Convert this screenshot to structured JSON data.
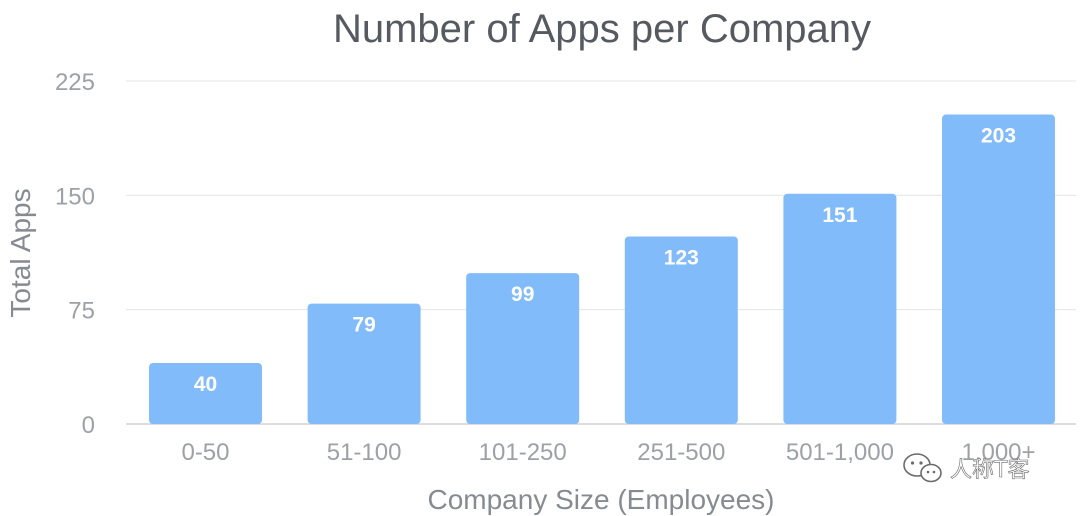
{
  "chart_data": {
    "type": "bar",
    "title": "Number of Apps per Company",
    "xlabel": "Company Size (Employees)",
    "ylabel": "Total Apps",
    "categories": [
      "0-50",
      "51-100",
      "101-250",
      "251-500",
      "501-1,000",
      "1,000+"
    ],
    "values": [
      40,
      79,
      99,
      123,
      151,
      203
    ],
    "data_labels": [
      "40",
      "79",
      "99",
      "123",
      "151",
      "203"
    ],
    "ylim": [
      0,
      225
    ],
    "yticks": [
      0,
      75,
      150,
      225
    ],
    "ytick_labels": [
      "0",
      "75",
      "150",
      "225"
    ],
    "grid": true,
    "legend": "none",
    "colors": {
      "bar": "#82bbf9",
      "grid": "#e3e5e8",
      "axis": "#cfd2d6"
    }
  },
  "watermark": {
    "text": "人称T客",
    "icon": "wechat-icon"
  }
}
